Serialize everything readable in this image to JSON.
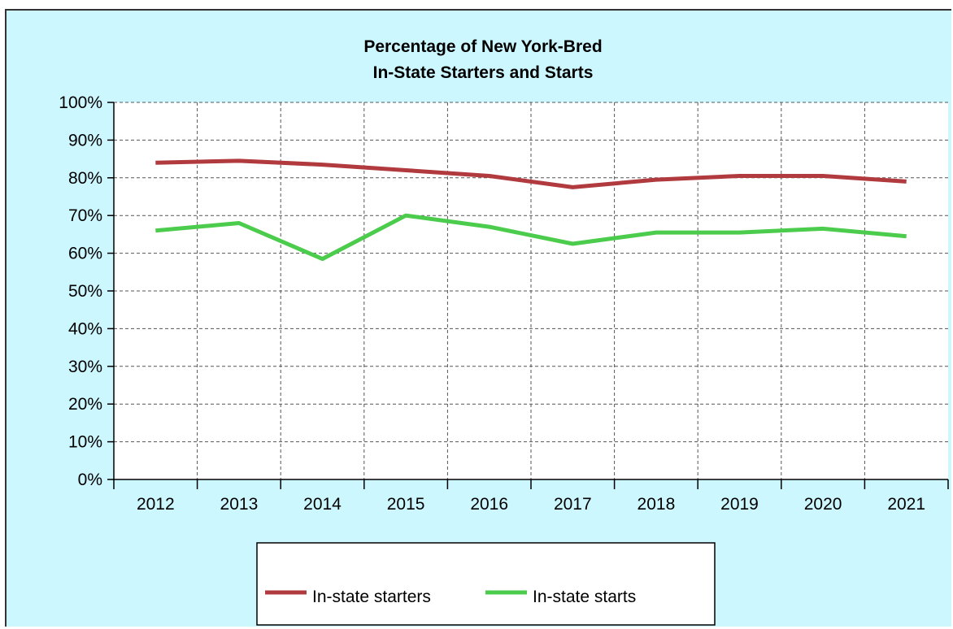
{
  "chart_data": {
    "type": "line",
    "title": [
      "Percentage of New York-Bred",
      "In-State Starters and Starts"
    ],
    "categories": [
      "2012",
      "2013",
      "2014",
      "2015",
      "2016",
      "2017",
      "2018",
      "2019",
      "2020",
      "2021"
    ],
    "series": [
      {
        "name": "In-state starters",
        "color": "#b03a3e",
        "values": [
          84,
          84.5,
          83.5,
          82,
          80.5,
          77.5,
          79.5,
          80.5,
          80.5,
          79
        ]
      },
      {
        "name": "In-state starts",
        "color": "#4ccc4c",
        "values": [
          66,
          68,
          58.5,
          70,
          67,
          62.5,
          65.5,
          65.5,
          66.5,
          64.5
        ]
      }
    ],
    "ylim": [
      0,
      100
    ],
    "y_ticks": [
      0,
      10,
      20,
      30,
      40,
      50,
      60,
      70,
      80,
      90,
      100
    ],
    "y_tick_labels": [
      "0%",
      "10%",
      "20%",
      "30%",
      "40%",
      "50%",
      "60%",
      "70%",
      "80%",
      "90%",
      "100%"
    ],
    "grid": true,
    "legend_position": "bottom",
    "background_color": "#ccf7ff",
    "plot_background_color": "#ffffff"
  }
}
